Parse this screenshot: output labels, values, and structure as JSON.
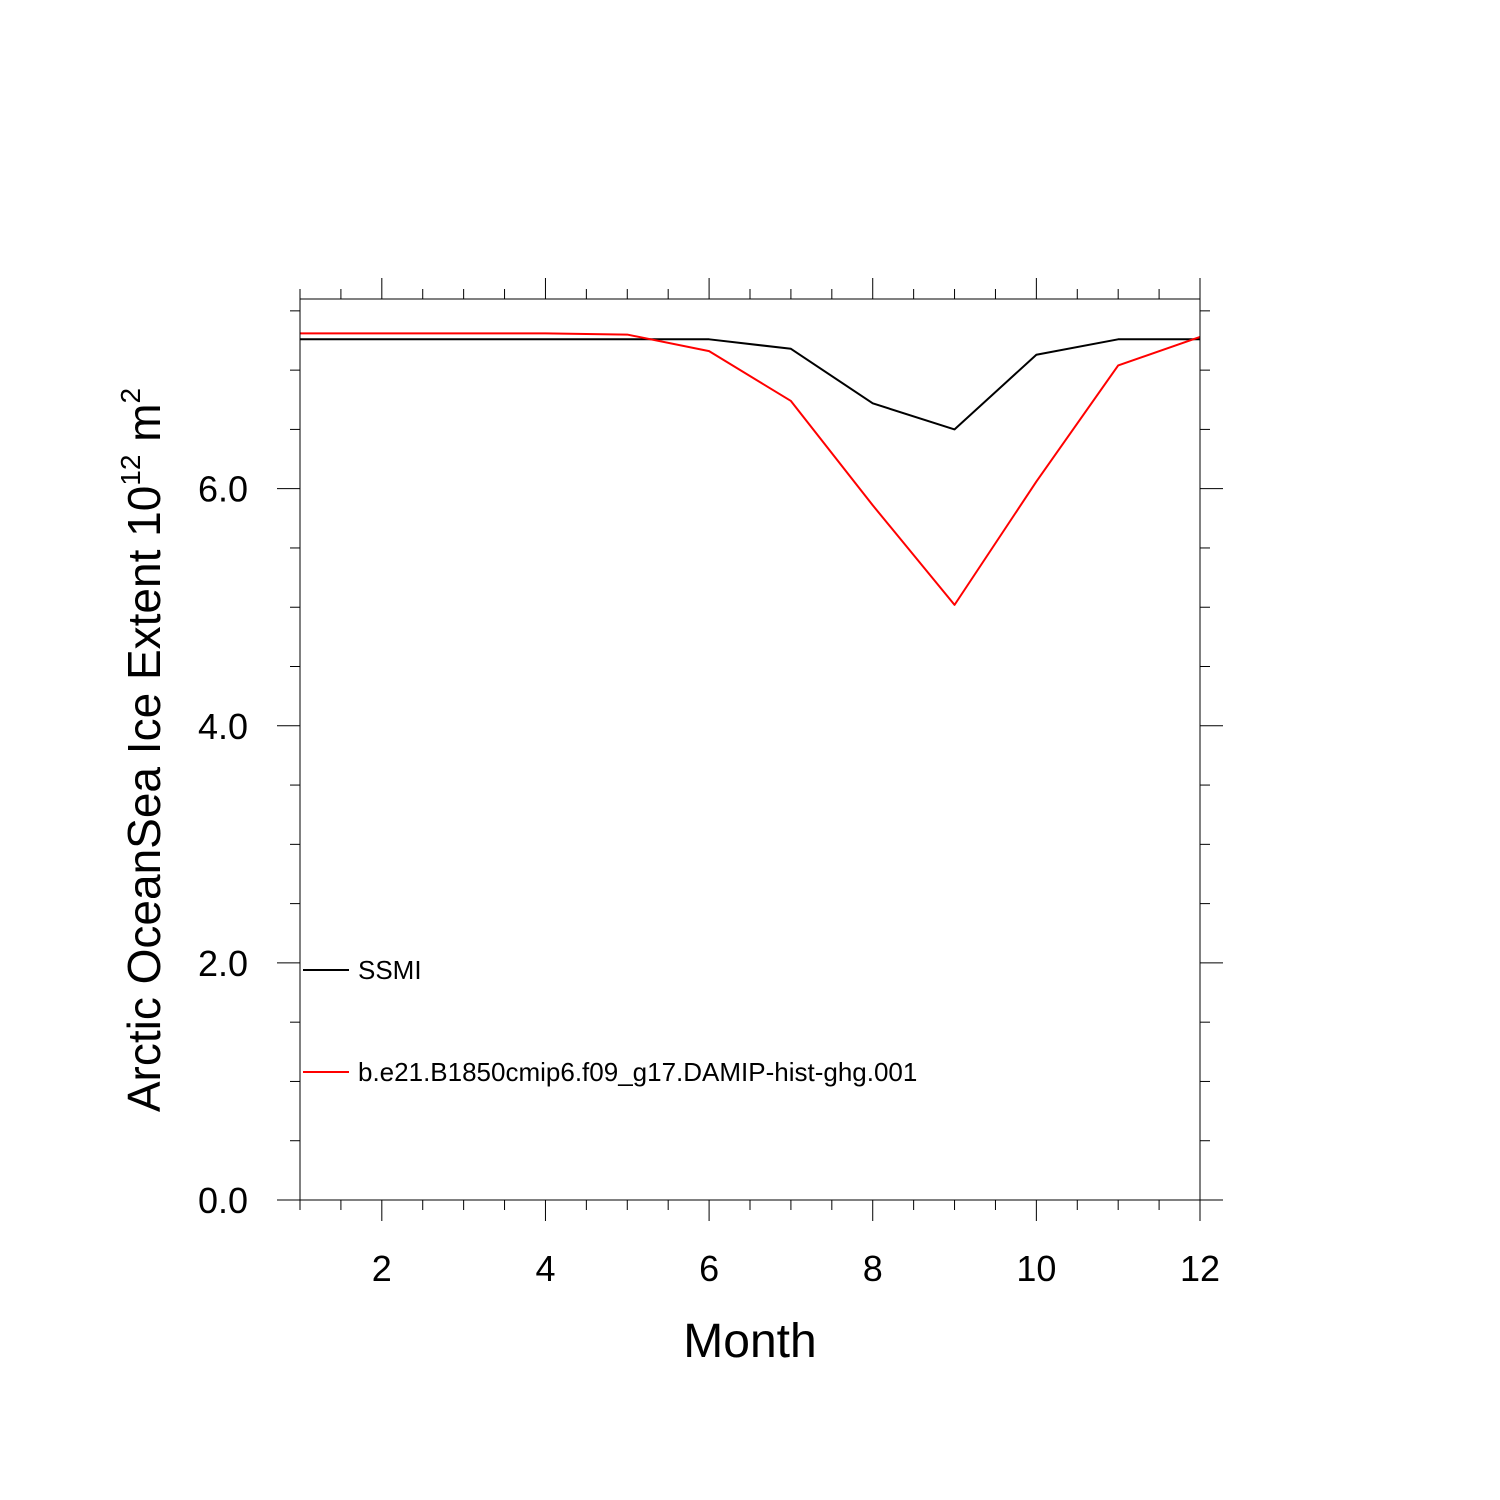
{
  "chart_data": {
    "type": "line",
    "title": "",
    "xlabel": "Month",
    "ylabel": {
      "main": "Arctic OceanSea Ice Extent 10",
      "superscript1": "12",
      "unit": " m",
      "superscript2": "2"
    },
    "xlim": [
      1,
      12
    ],
    "ylim": [
      0,
      7.6
    ],
    "x_ticks": [
      2,
      4,
      6,
      8,
      10,
      12
    ],
    "x_tick_labels": [
      "2",
      "4",
      "6",
      "8",
      "10",
      "12"
    ],
    "y_ticks": [
      0,
      2,
      4,
      6
    ],
    "y_tick_labels": [
      "0.0",
      "2.0",
      "4.0",
      "6.0"
    ],
    "grid": false,
    "legend_position": "lower-left",
    "x": [
      1,
      2,
      3,
      4,
      5,
      6,
      7,
      8,
      9,
      10,
      11,
      12
    ],
    "series": [
      {
        "name": "SSMI",
        "color": "#000000",
        "values": [
          7.26,
          7.26,
          7.26,
          7.26,
          7.26,
          7.26,
          7.18,
          6.72,
          6.5,
          7.13,
          7.26,
          7.26
        ]
      },
      {
        "name": "b.e21.B1850cmip6.f09_g17.DAMIP-hist-ghg.001",
        "color": "#ff0000",
        "values": [
          7.31,
          7.31,
          7.31,
          7.31,
          7.3,
          7.16,
          6.74,
          5.86,
          5.02,
          6.06,
          7.04,
          7.28
        ]
      }
    ]
  }
}
